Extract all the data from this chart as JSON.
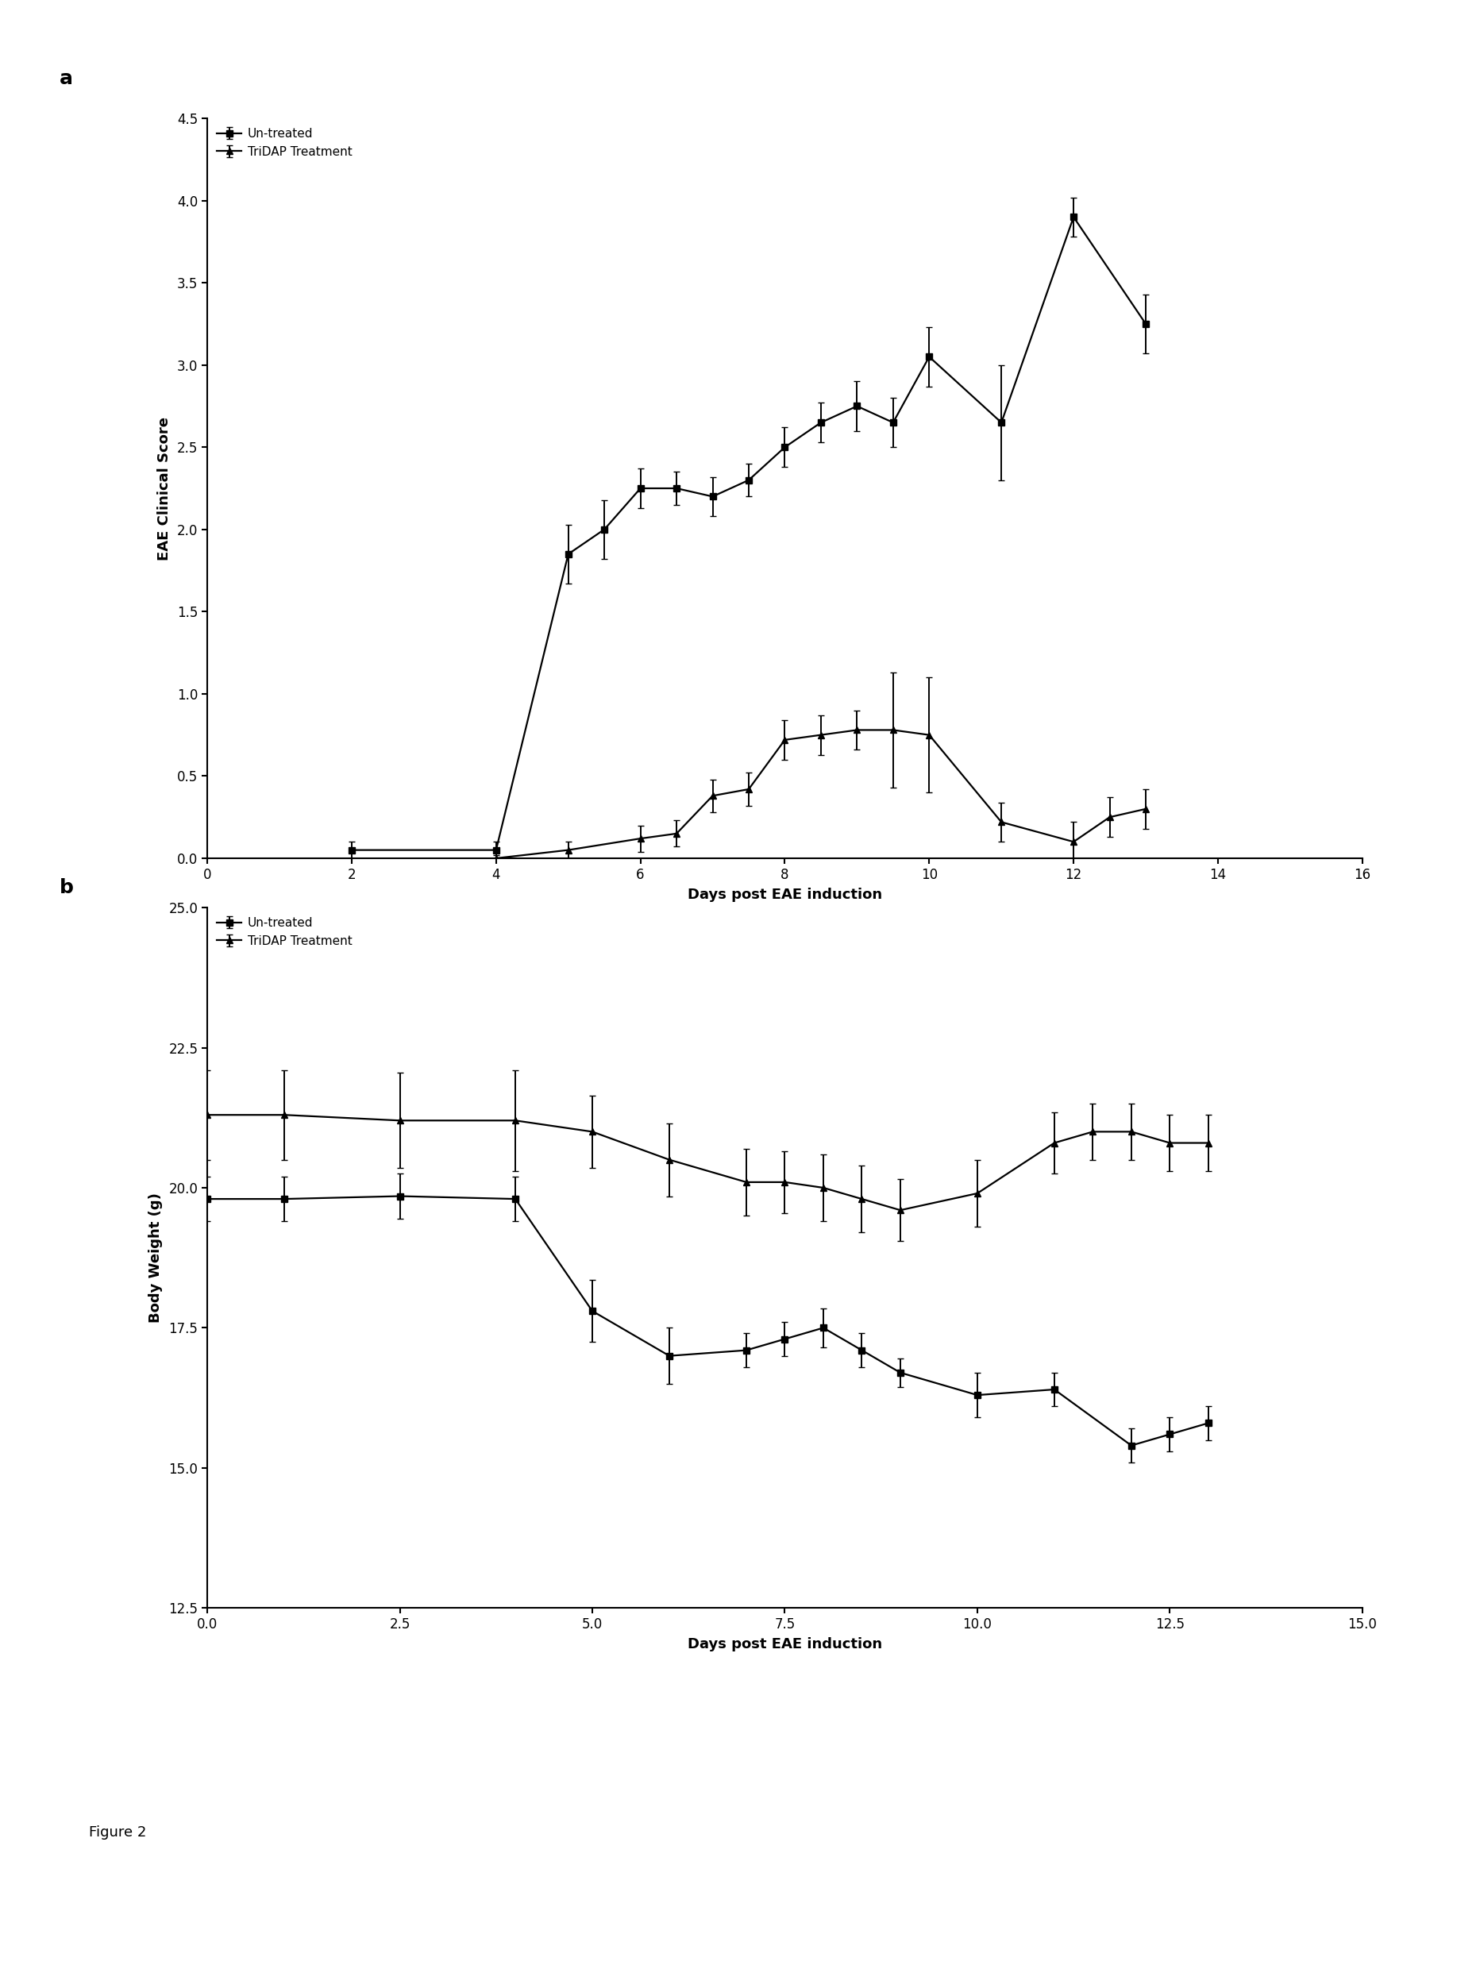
{
  "panel_a": {
    "untreated_x": [
      2,
      4,
      5,
      5.5,
      6,
      6.5,
      7,
      7.5,
      8,
      8.5,
      9,
      9.5,
      10,
      11,
      12,
      13
    ],
    "untreated_y": [
      0.05,
      0.05,
      1.85,
      2.0,
      2.25,
      2.25,
      2.2,
      2.3,
      2.5,
      2.65,
      2.75,
      2.65,
      3.05,
      2.65,
      3.9,
      3.25
    ],
    "untreated_yerr": [
      0.05,
      0.05,
      0.18,
      0.18,
      0.12,
      0.1,
      0.12,
      0.1,
      0.12,
      0.12,
      0.15,
      0.15,
      0.18,
      0.35,
      0.12,
      0.18
    ],
    "tridap_x": [
      4,
      5,
      6,
      6.5,
      7,
      7.5,
      8,
      8.5,
      9,
      9.5,
      10,
      11,
      12,
      12.5,
      13
    ],
    "tridap_y": [
      0.0,
      0.05,
      0.12,
      0.15,
      0.38,
      0.42,
      0.72,
      0.75,
      0.78,
      0.78,
      0.75,
      0.22,
      0.1,
      0.25,
      0.3
    ],
    "tridap_yerr": [
      0.02,
      0.05,
      0.08,
      0.08,
      0.1,
      0.1,
      0.12,
      0.12,
      0.12,
      0.35,
      0.35,
      0.12,
      0.12,
      0.12,
      0.12
    ],
    "xlabel": "Days post EAE induction",
    "ylabel": "EAE Clinical Score",
    "xlim": [
      0,
      16
    ],
    "ylim": [
      0,
      4.5
    ],
    "yticks": [
      0.0,
      0.5,
      1.0,
      1.5,
      2.0,
      2.5,
      3.0,
      3.5,
      4.0,
      4.5
    ],
    "xticks": [
      0,
      2,
      4,
      6,
      8,
      10,
      12,
      14,
      16
    ],
    "legend1": "Un-treated",
    "legend2": "TriDAP Treatment",
    "panel_label": "a"
  },
  "panel_b": {
    "untreated_x": [
      0,
      1,
      2.5,
      4,
      5,
      6,
      7,
      7.5,
      8,
      8.5,
      9,
      10,
      11,
      12,
      12.5,
      13
    ],
    "untreated_y": [
      19.8,
      19.8,
      19.85,
      19.8,
      17.8,
      17.0,
      17.1,
      17.3,
      17.5,
      17.1,
      16.7,
      16.3,
      16.4,
      15.4,
      15.6,
      15.8
    ],
    "untreated_yerr": [
      0.4,
      0.4,
      0.4,
      0.4,
      0.55,
      0.5,
      0.3,
      0.3,
      0.35,
      0.3,
      0.25,
      0.4,
      0.3,
      0.3,
      0.3,
      0.3
    ],
    "tridap_x": [
      0,
      1,
      2.5,
      4,
      5,
      6,
      7,
      7.5,
      8,
      8.5,
      9,
      10,
      11,
      11.5,
      12,
      12.5,
      13
    ],
    "tridap_y": [
      21.3,
      21.3,
      21.2,
      21.2,
      21.0,
      20.5,
      20.1,
      20.1,
      20.0,
      19.8,
      19.6,
      19.9,
      20.8,
      21.0,
      21.0,
      20.8,
      20.8
    ],
    "tridap_yerr": [
      0.8,
      0.8,
      0.85,
      0.9,
      0.65,
      0.65,
      0.6,
      0.55,
      0.6,
      0.6,
      0.55,
      0.6,
      0.55,
      0.5,
      0.5,
      0.5,
      0.5
    ],
    "xlabel": "Days post EAE induction",
    "ylabel": "Body Weight (g)",
    "xlim": [
      0,
      15
    ],
    "ylim": [
      12.5,
      25.0
    ],
    "yticks": [
      12.5,
      15.0,
      17.5,
      20.0,
      22.5,
      25.0
    ],
    "xticks": [
      0.0,
      2.5,
      5.0,
      7.5,
      10.0,
      12.5,
      15.0
    ],
    "legend1": "Un-treated",
    "legend2": "TriDAP Treatment",
    "panel_label": "b"
  },
  "figure_label": "Figure 2",
  "line_color": "#000000",
  "marker_size": 6,
  "linewidth": 1.6,
  "capsize": 3,
  "elinewidth": 1.4,
  "label_fontsize": 13,
  "tick_fontsize": 12,
  "legend_fontsize": 11,
  "panel_label_fontsize": 18
}
